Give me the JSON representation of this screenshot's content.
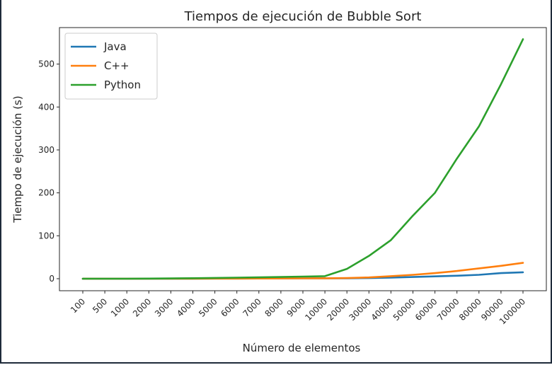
{
  "chart_data": {
    "type": "line",
    "title": "Tiempos de ejecución de Bubble Sort",
    "xlabel": "Número de elementos",
    "ylabel": "Tiempo de ejecución (s)",
    "categories": [
      "100",
      "500",
      "1000",
      "2000",
      "3000",
      "4000",
      "5000",
      "6000",
      "7000",
      "8000",
      "9000",
      "10000",
      "20000",
      "30000",
      "40000",
      "50000",
      "60000",
      "70000",
      "80000",
      "90000",
      "100000"
    ],
    "ylim": [
      -28,
      585
    ],
    "yticks": [
      0,
      100,
      200,
      300,
      400,
      500
    ],
    "grid": false,
    "legend_position": "upper-left",
    "series": [
      {
        "name": "Java",
        "color": "#1f77b4",
        "values": [
          0,
          0,
          0,
          0,
          0.1,
          0.2,
          0.3,
          0.4,
          0.5,
          0.6,
          0.8,
          1,
          1,
          1.5,
          2.5,
          4,
          5.5,
          7,
          9,
          13,
          15
        ]
      },
      {
        "name": "C++",
        "color": "#ff7f0e",
        "values": [
          0,
          0,
          0,
          0,
          0.1,
          0.2,
          0.3,
          0.4,
          0.5,
          0.6,
          0.8,
          1,
          1.5,
          3,
          6,
          9,
          13,
          18,
          24,
          30,
          37
        ]
      },
      {
        "name": "Python",
        "color": "#2ca02c",
        "values": [
          0,
          0,
          0,
          0.3,
          0.7,
          1.2,
          1.8,
          2.5,
          3.2,
          4,
          5,
          6,
          23,
          53,
          90,
          147,
          200,
          280,
          355,
          453,
          558
        ]
      }
    ]
  }
}
